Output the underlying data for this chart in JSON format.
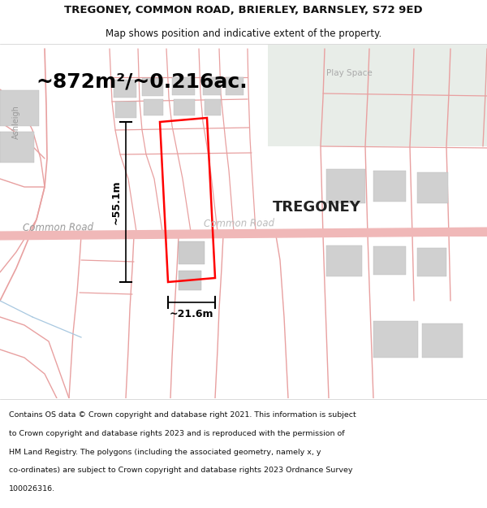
{
  "title_line1": "TREGONEY, COMMON ROAD, BRIERLEY, BARNSLEY, S72 9ED",
  "title_line2": "Map shows position and indicative extent of the property.",
  "footer_lines": [
    "Contains OS data © Crown copyright and database right 2021. This information is subject",
    "to Crown copyright and database rights 2023 and is reproduced with the permission of",
    "HM Land Registry. The polygons (including the associated geometry, namely x, y",
    "co-ordinates) are subject to Crown copyright and database rights 2023 Ordnance Survey",
    "100026316."
  ],
  "area_label": "~872m²/~0.216ac.",
  "height_label": "~55.1m",
  "width_label": "~21.6m",
  "property_label": "TREGONEY",
  "road_label1": "Common Road",
  "road_label2": "Common Road",
  "street_label": "Ashleigh",
  "play_space_label": "Play Space",
  "bg_color": "#ffffff",
  "map_bg": "#f7f0f0",
  "road_pink": "#f0b8b8",
  "road_thin": "#e8a0a0",
  "plot_color": "#ff0000",
  "green_color": "#e8ede8",
  "gray_building": "#d0d0d0",
  "blue_line": "#a8c8e0",
  "title_fontsize": 9.5,
  "subtitle_fontsize": 8.5,
  "area_fontsize": 18,
  "prop_fontsize": 13,
  "road_fontsize": 8.5,
  "footer_fontsize": 6.8
}
